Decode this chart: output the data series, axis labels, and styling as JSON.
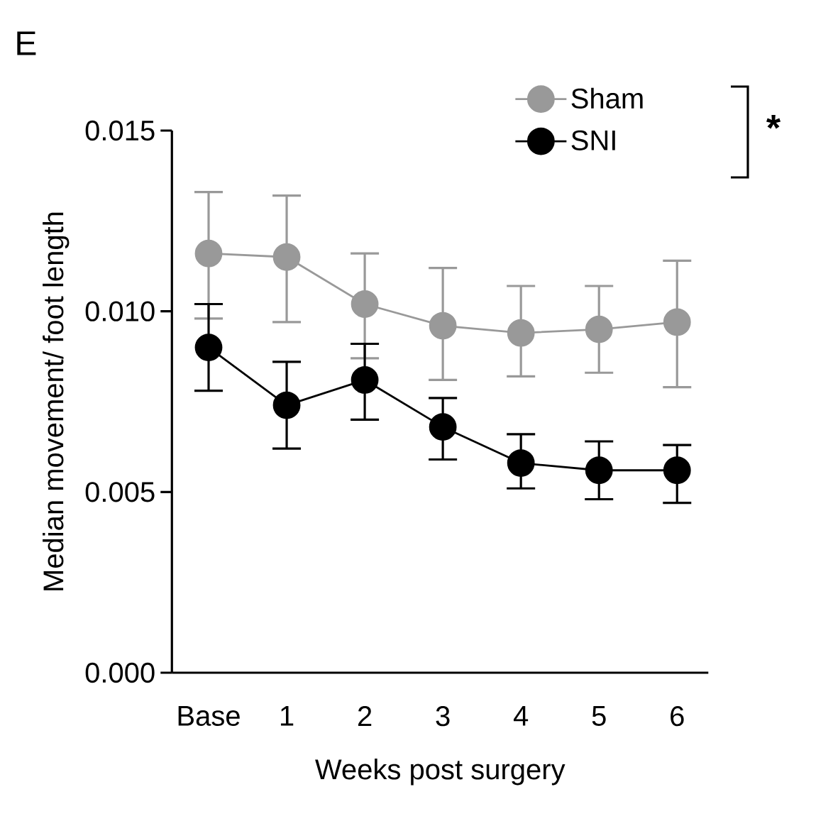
{
  "chart_data": {
    "type": "line",
    "title": "E",
    "xlabel": "Weeks post surgery",
    "ylabel": "Median movement/ foot length",
    "categories": [
      "Base",
      "1",
      "2",
      "3",
      "4",
      "5",
      "6"
    ],
    "series": [
      {
        "name": "Sham",
        "color": "#999999",
        "values": [
          0.0116,
          0.0115,
          0.0102,
          0.0096,
          0.0094,
          0.0095,
          0.0097
        ],
        "errors": [
          [
            0.0098,
            0.0133
          ],
          [
            0.0097,
            0.0132
          ],
          [
            0.0087,
            0.0116
          ],
          [
            0.0081,
            0.0112
          ],
          [
            0.0082,
            0.0107
          ],
          [
            0.0083,
            0.0107
          ],
          [
            0.0079,
            0.0114
          ]
        ]
      },
      {
        "name": "SNI",
        "color": "#000000",
        "values": [
          0.009,
          0.0074,
          0.0081,
          0.0068,
          0.0058,
          0.0056,
          0.0056
        ],
        "errors": [
          [
            0.0078,
            0.0102
          ],
          [
            0.0062,
            0.0086
          ],
          [
            0.007,
            0.0091
          ],
          [
            0.0059,
            0.0076
          ],
          [
            0.0051,
            0.0066
          ],
          [
            0.0048,
            0.0064
          ],
          [
            0.0047,
            0.0063
          ]
        ]
      }
    ],
    "ylim": [
      0,
      0.015
    ],
    "yticks": [
      {
        "value": 0,
        "label": "0.000"
      },
      {
        "value": 0.005,
        "label": "0.005"
      },
      {
        "value": 0.01,
        "label": "0.010"
      },
      {
        "value": 0.015,
        "label": "0.015"
      }
    ],
    "grid": false,
    "legend": "top right",
    "marker": "circle",
    "line_style": "solid",
    "annotations": [
      "*"
    ]
  }
}
